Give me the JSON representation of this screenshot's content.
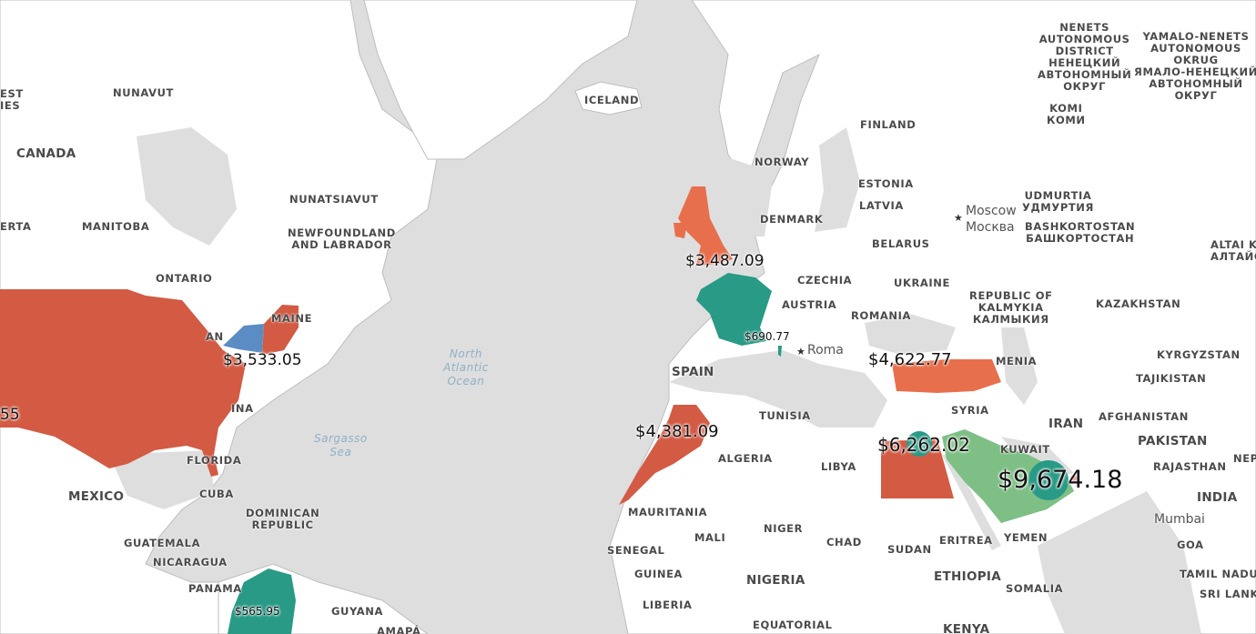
{
  "colors": {
    "water": "#dedede",
    "land": "#ffffff",
    "border": "#bdbdbd",
    "red": "#d35a43",
    "orange": "#e86f4c",
    "teal": "#289a86",
    "green": "#7dbf84",
    "blue": "#5b8cc4"
  },
  "map_labels": [
    {
      "id": "nunavut",
      "text": "NUNAVUT"
    },
    {
      "id": "nwt",
      "text": "EST\nIES"
    },
    {
      "id": "canada",
      "text": "CANADA"
    },
    {
      "id": "nunatsiavut",
      "text": "NUNATSIAVUT"
    },
    {
      "id": "alberta",
      "text": "ERTA"
    },
    {
      "id": "manitoba",
      "text": "MANITOBA"
    },
    {
      "id": "newfoundland",
      "text": "NEWFOUNDLAND\nAND LABRADOR"
    },
    {
      "id": "ontario",
      "text": "ONTARIO"
    },
    {
      "id": "maine",
      "text": "MAINE"
    },
    {
      "id": "nyc",
      "text": "AN"
    },
    {
      "id": "carolina",
      "text": "INA"
    },
    {
      "id": "florida",
      "text": "FLORIDA"
    },
    {
      "id": "mexico",
      "text": "MEXICO"
    },
    {
      "id": "cuba",
      "text": "CUBA"
    },
    {
      "id": "dominican",
      "text": "DOMINICAN\nREPUBLIC"
    },
    {
      "id": "guatemala",
      "text": "GUATEMALA"
    },
    {
      "id": "nicaragua",
      "text": "NICARAGUA"
    },
    {
      "id": "panama",
      "text": "PANAMA"
    },
    {
      "id": "guyana",
      "text": "GUYANA"
    },
    {
      "id": "amapa",
      "text": "AMAPÁ"
    },
    {
      "id": "iceland",
      "text": "ICELAND"
    },
    {
      "id": "finland",
      "text": "FINLAND"
    },
    {
      "id": "norway",
      "text": "NORWAY"
    },
    {
      "id": "estonia",
      "text": "ESTONIA"
    },
    {
      "id": "latvia",
      "text": "LATVIA"
    },
    {
      "id": "denmark",
      "text": "DENMARK"
    },
    {
      "id": "belarus",
      "text": "BELARUS"
    },
    {
      "id": "czechia",
      "text": "CZECHIA"
    },
    {
      "id": "ukraine",
      "text": "UKRAINE"
    },
    {
      "id": "austria",
      "text": "AUSTRIA"
    },
    {
      "id": "romania",
      "text": "ROMANIA"
    },
    {
      "id": "spain",
      "text": "SPAIN"
    },
    {
      "id": "tunisia",
      "text": "TUNISIA"
    },
    {
      "id": "algeria",
      "text": "ALGERIA"
    },
    {
      "id": "libya",
      "text": "LIBYA"
    },
    {
      "id": "mauritania",
      "text": "MAURITANIA"
    },
    {
      "id": "mali",
      "text": "MALI"
    },
    {
      "id": "niger",
      "text": "NIGER"
    },
    {
      "id": "chad",
      "text": "CHAD"
    },
    {
      "id": "sudan",
      "text": "SUDAN"
    },
    {
      "id": "eritrea",
      "text": "ERITREA"
    },
    {
      "id": "yemen",
      "text": "YEMEN"
    },
    {
      "id": "senegal",
      "text": "SENEGAL"
    },
    {
      "id": "guinea",
      "text": "GUINEA"
    },
    {
      "id": "nigeria",
      "text": "NIGERIA"
    },
    {
      "id": "ethiopia",
      "text": "ETHIOPIA"
    },
    {
      "id": "somalia",
      "text": "SOMALIA"
    },
    {
      "id": "liberia",
      "text": "LIBERIA"
    },
    {
      "id": "equatorial",
      "text": "EQUATORIAL"
    },
    {
      "id": "kenya",
      "text": "KENYA"
    },
    {
      "id": "syria",
      "text": "SYRIA"
    },
    {
      "id": "armenia",
      "text": "MENIA"
    },
    {
      "id": "kuwait",
      "text": "KUWAIT"
    },
    {
      "id": "iran",
      "text": "IRAN"
    },
    {
      "id": "afghanistan",
      "text": "AFGHANISTAN"
    },
    {
      "id": "pakistan",
      "text": "PAKISTAN"
    },
    {
      "id": "rajasthan",
      "text": "RAJASTHAN"
    },
    {
      "id": "india",
      "text": "INDIA"
    },
    {
      "id": "goa",
      "text": "GOA"
    },
    {
      "id": "tamilnadu",
      "text": "TAMIL NADU"
    },
    {
      "id": "srilanka",
      "text": "SRI LANKA"
    },
    {
      "id": "nepal",
      "text": "NEP"
    },
    {
      "id": "kazakhstan",
      "text": "KAZAKHSTAN"
    },
    {
      "id": "kyrgyzstan",
      "text": "KYRGYZSTAN"
    },
    {
      "id": "tajikistan",
      "text": "TAJIKISTAN"
    },
    {
      "id": "kalmykia",
      "text": "REPUBLIC OF\nKALMYKIA\nКАЛМЫКИЯ"
    },
    {
      "id": "bashkortostan",
      "text": "BASHKORTOSTAN\nБАШКОРТОСТАН"
    },
    {
      "id": "udmurtia",
      "text": "UDMURTIA\nУДМУРТИЯ"
    },
    {
      "id": "komi",
      "text": "KOMI\nКОМИ"
    },
    {
      "id": "nenets",
      "text": "NENETS\nAUTONOMOUS\nDISTRICT\nНЕНЕЦКИЙ\nАВТОНОМНЫЙ\nОКРУГ"
    },
    {
      "id": "yamalo",
      "text": "YAMALO-NENETS\nAUTONOMOUS\nOKRUG\nЯМАЛО-НЕНЕЦКИЙ\nАВТОНОМНЫЙ\nОКРУГ"
    },
    {
      "id": "altai",
      "text": "ALTAI K\nАЛТАЙСКИ"
    }
  ],
  "ocean_labels": [
    {
      "id": "north-atlantic",
      "text": "North\nAtlantic\nOcean"
    },
    {
      "id": "sargasso",
      "text": "Sargasso\nSea"
    }
  ],
  "cities": [
    {
      "id": "moscow",
      "text": "Moscow\nМосква"
    },
    {
      "id": "roma",
      "text": "Roma"
    },
    {
      "id": "mumbai",
      "text": "Mumbai"
    }
  ],
  "value_labels": [
    {
      "id": "usa-west",
      "text": "55"
    },
    {
      "id": "new-york",
      "text": "$3,533.05"
    },
    {
      "id": "uk",
      "text": "$3,487.09"
    },
    {
      "id": "corsica",
      "text": "$690.77"
    },
    {
      "id": "turkey",
      "text": "$4,622.77"
    },
    {
      "id": "morocco",
      "text": "$4,381.09"
    },
    {
      "id": "egypt",
      "text": "$6,262.02"
    },
    {
      "id": "saudi",
      "text": "$9,674.18"
    },
    {
      "id": "colombia",
      "text": "$565.95"
    }
  ]
}
